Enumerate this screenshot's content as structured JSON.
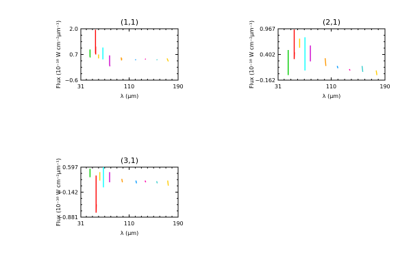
{
  "chart_data": [
    {
      "type": "line",
      "title": "(1,1)",
      "xlabel": "λ (μm)",
      "ylabel": "Flux (10⁻¹⁸ W cm⁻²μm⁻¹)",
      "xlim": [
        31,
        190
      ],
      "ylim": [
        -0.6,
        2.0
      ],
      "xticks": [
        "31",
        "110",
        "190"
      ],
      "yticks": [
        "−0.6",
        "0.7",
        "2.0"
      ],
      "ytick_values": [
        -0.6,
        0.7,
        2.0
      ],
      "series": [
        {
          "color": "#00cc00",
          "x": [
            46,
            46,
            46.3
          ],
          "y": [
            0.95,
            0.6,
            0.55
          ]
        },
        {
          "color": "#ff0000",
          "x": [
            55,
            55,
            55.3,
            55.3
          ],
          "y": [
            1.95,
            0.75,
            1.1,
            0.7
          ]
        },
        {
          "color": "#ffcc00",
          "x": [
            60,
            60
          ],
          "y": [
            0.7,
            0.5
          ]
        },
        {
          "color": "#00ffff",
          "x": [
            67,
            67
          ],
          "y": [
            1.05,
            0.45
          ]
        },
        {
          "color": "#cc00cc",
          "x": [
            78,
            78,
            78.5
          ],
          "y": [
            0.65,
            0.2,
            0.1
          ]
        },
        {
          "color": "#ff9900",
          "x": [
            97,
            97.5,
            98
          ],
          "y": [
            0.55,
            0.4,
            0.5
          ]
        },
        {
          "color": "#0099ff",
          "x": [
            120,
            121
          ],
          "y": [
            0.45,
            0.42
          ]
        },
        {
          "color": "#ff00aa",
          "x": [
            136,
            137
          ],
          "y": [
            0.48,
            0.45
          ]
        },
        {
          "color": "#33cccc",
          "x": [
            155,
            156
          ],
          "y": [
            0.45,
            0.42
          ]
        },
        {
          "color": "#ffcc00",
          "x": [
            172,
            174
          ],
          "y": [
            0.5,
            0.35
          ]
        }
      ]
    },
    {
      "type": "line",
      "title": "(2,1)",
      "xlabel": "λ (μm)",
      "ylabel": "Flux (10⁻¹⁸ W cm⁻²μm⁻¹)",
      "xlim": [
        31,
        190
      ],
      "ylim": [
        -0.162,
        0.967
      ],
      "xticks": [
        "31",
        "110",
        "190"
      ],
      "yticks": [
        "−0.162",
        "0.402",
        "0.967"
      ],
      "ytick_values": [
        -0.162,
        0.402,
        0.967
      ],
      "series": [
        {
          "color": "#00cc00",
          "x": [
            46,
            46
          ],
          "y": [
            0.5,
            -0.05
          ]
        },
        {
          "color": "#ff0000",
          "x": [
            55,
            55,
            55.3
          ],
          "y": [
            0.95,
            0.3,
            0.45
          ]
        },
        {
          "color": "#ffcc00",
          "x": [
            63,
            63
          ],
          "y": [
            0.75,
            0.55
          ]
        },
        {
          "color": "#00ffff",
          "x": [
            71,
            71
          ],
          "y": [
            0.78,
            0.05
          ]
        },
        {
          "color": "#cc00cc",
          "x": [
            79,
            79
          ],
          "y": [
            0.6,
            0.25
          ]
        },
        {
          "color": "#ff9900",
          "x": [
            101,
            102
          ],
          "y": [
            0.32,
            0.15
          ]
        },
        {
          "color": "#0099ff",
          "x": [
            119,
            120
          ],
          "y": [
            0.15,
            0.1
          ]
        },
        {
          "color": "#ff00aa",
          "x": [
            137,
            138
          ],
          "y": [
            0.08,
            0.05
          ]
        },
        {
          "color": "#33cccc",
          "x": [
            156,
            157
          ],
          "y": [
            0.15,
            0.02
          ]
        },
        {
          "color": "#ffcc00",
          "x": [
            177,
            178
          ],
          "y": [
            0.05,
            -0.05
          ]
        }
      ]
    },
    {
      "type": "line",
      "title": "(3,1)",
      "xlabel": "λ (μm)",
      "ylabel": "Flux (10⁻¹⁸ W cm⁻²μm⁻¹)",
      "xlim": [
        31,
        190
      ],
      "ylim": [
        -0.881,
        0.597
      ],
      "xticks": [
        "31",
        "110",
        "190"
      ],
      "yticks": [
        "−0.881",
        "−0.142",
        "0.597"
      ],
      "ytick_values": [
        -0.881,
        -0.142,
        0.597
      ],
      "series": [
        {
          "color": "#00cc00",
          "x": [
            46,
            46
          ],
          "y": [
            0.55,
            0.3
          ]
        },
        {
          "color": "#ff0000",
          "x": [
            56,
            56,
            56.3
          ],
          "y": [
            0.35,
            -0.75,
            -0.5
          ]
        },
        {
          "color": "#ffcc00",
          "x": [
            62,
            62
          ],
          "y": [
            0.45,
            0.2
          ]
        },
        {
          "color": "#00ffff",
          "x": [
            68,
            68
          ],
          "y": [
            0.6,
            0.0
          ]
        },
        {
          "color": "#cc00cc",
          "x": [
            78,
            78
          ],
          "y": [
            0.45,
            0.15
          ]
        },
        {
          "color": "#ff9900",
          "x": [
            98,
            99
          ],
          "y": [
            0.25,
            0.15
          ]
        },
        {
          "color": "#0099ff",
          "x": [
            121,
            122
          ],
          "y": [
            0.2,
            0.12
          ]
        },
        {
          "color": "#ff00aa",
          "x": [
            136,
            137
          ],
          "y": [
            0.2,
            0.15
          ]
        },
        {
          "color": "#33cccc",
          "x": [
            155,
            156
          ],
          "y": [
            0.18,
            0.12
          ]
        },
        {
          "color": "#ffcc00",
          "x": [
            173,
            174
          ],
          "y": [
            0.2,
            0.05
          ]
        }
      ]
    }
  ]
}
